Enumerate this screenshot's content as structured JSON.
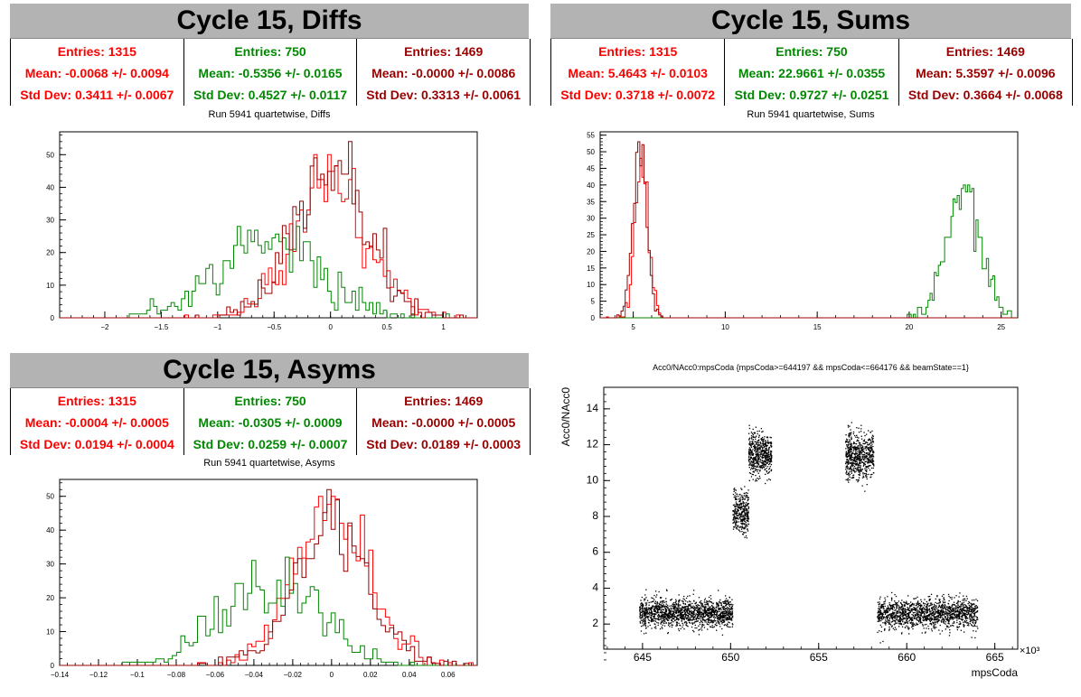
{
  "colors": {
    "red": "#ff0000",
    "green": "#008800",
    "darkred": "#990000"
  },
  "panels": {
    "diffs": {
      "title": "Cycle 15, Diffs",
      "subtitle": "Run 5941 quartetwise, Diffs",
      "stats": [
        {
          "entries": "Entries: 1315",
          "mean": "Mean: -0.0068 +/- 0.0094",
          "std": "Std Dev: 0.3411 +/- 0.0067"
        },
        {
          "entries": "Entries: 750",
          "mean": "Mean: -0.5356 +/- 0.0165",
          "std": "Std Dev: 0.4527 +/- 0.0117"
        },
        {
          "entries": "Entries: 1469",
          "mean": "Mean: -0.0000 +/- 0.0086",
          "std": "Std Dev: 0.3313 +/- 0.0061"
        }
      ]
    },
    "sums": {
      "title": "Cycle 15, Sums",
      "subtitle": "Run 5941 quartetwise, Sums",
      "stats": [
        {
          "entries": "Entries: 1315",
          "mean": "Mean: 5.4643 +/- 0.0103",
          "std": "Std Dev: 0.3718 +/- 0.0072"
        },
        {
          "entries": "Entries: 750",
          "mean": "Mean: 22.9661 +/- 0.0355",
          "std": "Std Dev: 0.9727 +/- 0.0251"
        },
        {
          "entries": "Entries: 1469",
          "mean": "Mean: 5.3597 +/- 0.0096",
          "std": "Std Dev: 0.3664 +/- 0.0068"
        }
      ]
    },
    "asyms": {
      "title": "Cycle 15, Asyms",
      "subtitle": "Run 5941 quartetwise, Asyms",
      "stats": [
        {
          "entries": "Entries: 1315",
          "mean": "Mean: -0.0004 +/- 0.0005",
          "std": "Std Dev: 0.0194 +/- 0.0004"
        },
        {
          "entries": "Entries: 750",
          "mean": "Mean: -0.0305 +/- 0.0009",
          "std": "Std Dev: 0.0259 +/- 0.0007"
        },
        {
          "entries": "Entries: 1469",
          "mean": "Mean: -0.0000 +/- 0.0005",
          "std": "Std Dev: 0.0189 +/- 0.0003"
        }
      ]
    },
    "scatter": {
      "subtitle": "Acc0/NAcc0:mpsCoda {mpsCoda>=644197 && mpsCoda<=664176 && beamState==1}"
    }
  },
  "chart_data": [
    {
      "type": "histogram",
      "title": "Run 5941 quartetwise, Diffs",
      "xlim": [
        -2.4,
        1.3
      ],
      "ylim": [
        0,
        57
      ],
      "xticks": [
        -2,
        -1.5,
        -1,
        -0.5,
        0,
        0.5,
        1
      ],
      "xtick_labels": [
        "−2",
        "−1.5",
        "−1",
        "−0.5",
        "0",
        "0.5",
        "1"
      ],
      "yticks": [
        0,
        10,
        20,
        30,
        40,
        50
      ],
      "ytick_labels": [
        "0",
        "10",
        "20",
        "30",
        "40",
        "50"
      ],
      "series": [
        {
          "color": "red",
          "entries": 1315,
          "mean": -0.0068,
          "std": 0.3411,
          "ymax": 50
        },
        {
          "color": "green",
          "entries": 750,
          "mean": -0.5356,
          "std": 0.4527,
          "ymax": 28
        },
        {
          "color": "darkred",
          "entries": 1469,
          "mean": 0.0,
          "std": 0.3313,
          "ymax": 54
        }
      ]
    },
    {
      "type": "histogram",
      "title": "Run 5941 quartetwise, Sums",
      "xlim": [
        3.2,
        25.9
      ],
      "ylim": [
        0,
        56
      ],
      "xticks": [
        5,
        10,
        15,
        20,
        25
      ],
      "xtick_labels": [
        "5",
        "10",
        "15",
        "20",
        "25"
      ],
      "yticks": [
        0,
        5,
        10,
        15,
        20,
        25,
        30,
        35,
        40,
        45,
        50,
        55
      ],
      "ytick_labels": [
        "0",
        "5",
        "10",
        "15",
        "20",
        "25",
        "30",
        "35",
        "40",
        "45",
        "50",
        "55"
      ],
      "series": [
        {
          "color": "red",
          "entries": 1315,
          "mean": 5.4643,
          "std": 0.3718,
          "ymax": 48
        },
        {
          "color": "green",
          "entries": 750,
          "mean": 22.9661,
          "std": 0.9727,
          "ymax": 40
        },
        {
          "color": "darkred",
          "entries": 1469,
          "mean": 5.3597,
          "std": 0.3664,
          "ymax": 53
        }
      ]
    },
    {
      "type": "histogram",
      "title": "Run 5941 quartetwise, Asyms",
      "xlim": [
        -0.14,
        0.075
      ],
      "ylim": [
        0,
        55
      ],
      "xticks": [
        -0.14,
        -0.12,
        -0.1,
        -0.08,
        -0.06,
        -0.04,
        -0.02,
        0,
        0.02,
        0.04,
        0.06
      ],
      "xtick_labels": [
        "−0.14",
        "−0.12",
        "−0.1",
        "−0.08",
        "−0.06",
        "−0.04",
        "−0.02",
        "0",
        "0.02",
        "0.04",
        "0.06"
      ],
      "yticks": [
        0,
        10,
        20,
        30,
        40,
        50
      ],
      "ytick_labels": [
        "0",
        "10",
        "20",
        "30",
        "40",
        "50"
      ],
      "series": [
        {
          "color": "red",
          "entries": 1315,
          "mean": -0.0004,
          "std": 0.0194,
          "ymax": 50
        },
        {
          "color": "green",
          "entries": 750,
          "mean": -0.0305,
          "std": 0.0259,
          "ymax": 32
        },
        {
          "color": "darkred",
          "entries": 1469,
          "mean": 0.0,
          "std": 0.0189,
          "ymax": 52
        }
      ]
    },
    {
      "type": "scatter",
      "title": "Acc0/NAcc0:mpsCoda {mpsCoda>=644197 && mpsCoda<=664176 && beamState==1}",
      "xlabel": "mpsCoda",
      "ylabel": "Acc0/NAcc0",
      "x_multiplier": "×10³",
      "xlim": [
        642.8,
        666.3
      ],
      "ylim": [
        0.6,
        15.2
      ],
      "xticks": [
        645,
        650,
        655,
        660,
        665
      ],
      "xtick_labels": [
        "645",
        "650",
        "655",
        "660",
        "665"
      ],
      "yticks": [
        2,
        4,
        6,
        8,
        10,
        12,
        14
      ],
      "ytick_labels": [
        "2",
        "4",
        "6",
        "8",
        "10",
        "12",
        "14"
      ],
      "clusters": [
        {
          "x": [
            644.8,
            650.1
          ],
          "y_mean": 2.65,
          "y_sd": 0.4,
          "n": 1500
        },
        {
          "x": [
            650.1,
            651.0
          ],
          "y_mean": 8.2,
          "y_sd": 0.55,
          "n": 350
        },
        {
          "x": [
            651.0,
            652.3
          ],
          "y_mean": 11.5,
          "y_sd": 0.6,
          "n": 550
        },
        {
          "x": [
            656.5,
            658.1
          ],
          "y_mean": 11.4,
          "y_sd": 0.65,
          "n": 650
        },
        {
          "x": [
            658.3,
            664.0
          ],
          "y_mean": 2.6,
          "y_sd": 0.4,
          "n": 1500
        }
      ]
    }
  ]
}
